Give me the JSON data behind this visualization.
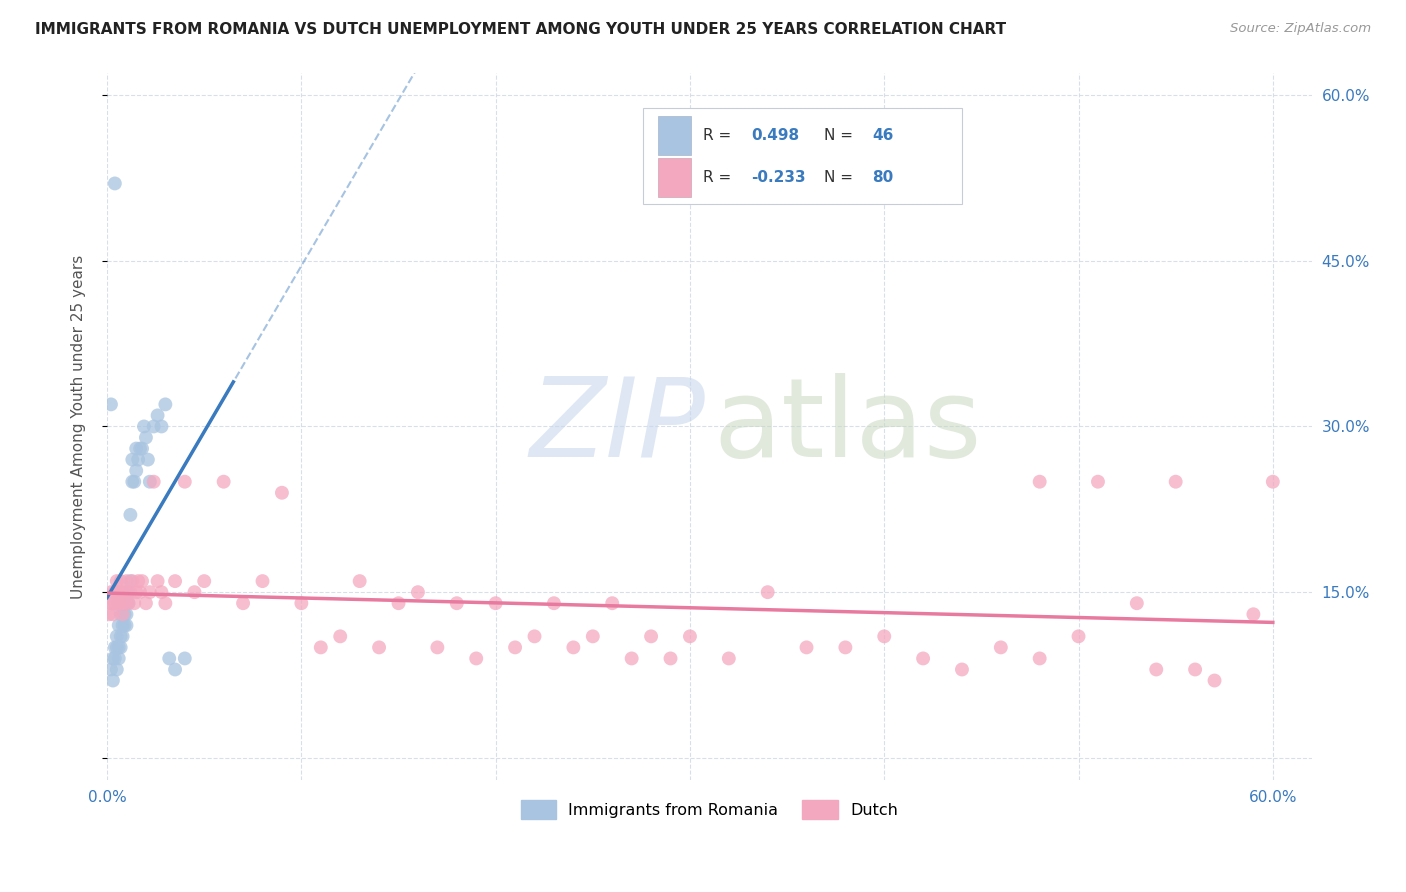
{
  "title": "IMMIGRANTS FROM ROMANIA VS DUTCH UNEMPLOYMENT AMONG YOUTH UNDER 25 YEARS CORRELATION CHART",
  "source": "Source: ZipAtlas.com",
  "ylabel": "Unemployment Among Youth under 25 years",
  "xlim": [
    0.0,
    0.62
  ],
  "ylim": [
    -0.02,
    0.62
  ],
  "ytick_vals": [
    0.0,
    0.15,
    0.3,
    0.45,
    0.6
  ],
  "xtick_vals": [
    0.0,
    0.1,
    0.2,
    0.3,
    0.4,
    0.5,
    0.6
  ],
  "legend_label1": "Immigrants from Romania",
  "legend_label2": "Dutch",
  "r1": 0.498,
  "n1": 46,
  "r2": -0.233,
  "n2": 80,
  "color1": "#a8c4e0",
  "color2": "#f4a8c0",
  "line_color1": "#3a7abf",
  "line_color2": "#e87a9f",
  "text_color": "#3a7abf",
  "label_color": "#555555"
}
